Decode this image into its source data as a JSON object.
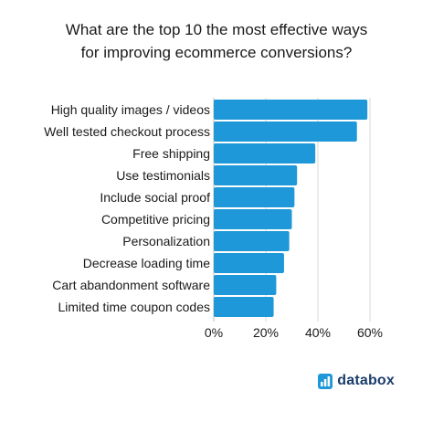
{
  "colors": {
    "bar": "#1e98d8",
    "brand_text": "#1b3d6b",
    "logo_blue": "#1e98d8",
    "logo_dark": "#1b3d6b"
  },
  "brand": {
    "name": "databox",
    "icon": "databox-logo-icon"
  },
  "chart_data": {
    "type": "bar",
    "orientation": "horizontal",
    "title": "What are the top 10 the most effective ways for improving ecommerce conversions?",
    "title_lines": [
      "What are the top 10 the most effective ways",
      "for improving ecommerce conversions?"
    ],
    "categories": [
      "High quality images / videos",
      "Well tested checkout process",
      "Free shipping",
      "Use testimonials",
      "Include social proof",
      "Competitive pricing",
      "Personalization",
      "Decrease loading time",
      "Cart abandonment software",
      "Limited time coupon codes"
    ],
    "values": [
      59,
      55,
      39,
      32,
      31,
      30,
      29,
      27,
      24,
      23
    ],
    "unit": "%",
    "xlim": [
      0,
      60
    ],
    "xticks": [
      "0%",
      "20%",
      "40%",
      "60%"
    ],
    "grid": true,
    "legend": "none"
  }
}
